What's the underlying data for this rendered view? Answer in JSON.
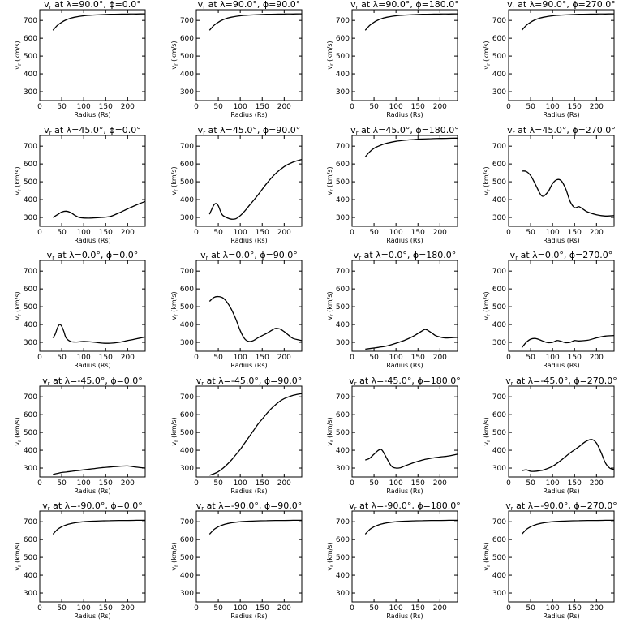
{
  "figure": {
    "title_prefix": "v",
    "title_sub": "r",
    "title_mid": " at λ=",
    "title_sep": ", ϕ=",
    "deg": "°"
  },
  "chart_data": [
    {
      "type": "line",
      "lambda": "90.0",
      "phi": "0.0",
      "xlabel": "Radius (Rs)",
      "ylabel": "v_r (km/s)",
      "xlim": [
        0,
        240
      ],
      "ylim": [
        250,
        760
      ],
      "xticks": [
        0,
        50,
        100,
        150,
        200
      ],
      "yticks": [
        300,
        400,
        500,
        600,
        700
      ],
      "x": [
        30,
        40,
        50,
        60,
        70,
        80,
        100,
        120,
        140,
        160,
        180,
        200,
        220,
        240
      ],
      "y": [
        645,
        672,
        690,
        703,
        712,
        718,
        726,
        730,
        732,
        734,
        735,
        736,
        736,
        737
      ]
    },
    {
      "type": "line",
      "lambda": "90.0",
      "phi": "90.0",
      "xlabel": "Radius (Rs)",
      "ylabel": "v_r (km/s)",
      "xlim": [
        0,
        240
      ],
      "ylim": [
        250,
        760
      ],
      "xticks": [
        0,
        50,
        100,
        150,
        200
      ],
      "yticks": [
        300,
        400,
        500,
        600,
        700
      ],
      "x": [
        30,
        40,
        50,
        60,
        70,
        80,
        100,
        120,
        140,
        160,
        180,
        200,
        220,
        240
      ],
      "y": [
        645,
        672,
        690,
        703,
        712,
        718,
        726,
        730,
        732,
        734,
        735,
        736,
        736,
        737
      ]
    },
    {
      "type": "line",
      "lambda": "90.0",
      "phi": "180.0",
      "xlabel": "Radius (Rs)",
      "ylabel": "v_r (km/s)",
      "xlim": [
        0,
        240
      ],
      "ylim": [
        250,
        760
      ],
      "xticks": [
        0,
        50,
        100,
        150,
        200
      ],
      "yticks": [
        300,
        400,
        500,
        600,
        700
      ],
      "x": [
        30,
        40,
        50,
        60,
        70,
        80,
        100,
        120,
        140,
        160,
        180,
        200,
        220,
        240
      ],
      "y": [
        645,
        672,
        690,
        703,
        712,
        718,
        726,
        730,
        732,
        734,
        735,
        736,
        736,
        737
      ]
    },
    {
      "type": "line",
      "lambda": "90.0",
      "phi": "270.0",
      "xlabel": "Radius (Rs)",
      "ylabel": "v_r (km/s)",
      "xlim": [
        0,
        240
      ],
      "ylim": [
        250,
        760
      ],
      "xticks": [
        0,
        50,
        100,
        150,
        200
      ],
      "yticks": [
        300,
        400,
        500,
        600,
        700
      ],
      "x": [
        30,
        40,
        50,
        60,
        70,
        80,
        100,
        120,
        140,
        160,
        180,
        200,
        220,
        240
      ],
      "y": [
        645,
        672,
        690,
        703,
        712,
        718,
        726,
        730,
        732,
        734,
        735,
        736,
        736,
        737
      ]
    },
    {
      "type": "line",
      "lambda": "45.0",
      "phi": "0.0",
      "xlabel": "Radius (Rs)",
      "ylabel": "v_r (km/s)",
      "xlim": [
        0,
        240
      ],
      "ylim": [
        250,
        760
      ],
      "xticks": [
        0,
        50,
        100,
        150,
        200
      ],
      "yticks": [
        300,
        400,
        500,
        600,
        700
      ],
      "x": [
        30,
        40,
        50,
        60,
        70,
        80,
        90,
        100,
        110,
        120,
        140,
        160,
        180,
        200,
        220,
        240
      ],
      "y": [
        300,
        315,
        330,
        335,
        328,
        312,
        300,
        297,
        296,
        297,
        300,
        305,
        325,
        348,
        370,
        390
      ]
    },
    {
      "type": "line",
      "lambda": "45.0",
      "phi": "90.0",
      "xlabel": "Radius (Rs)",
      "ylabel": "v_r (km/s)",
      "xlim": [
        0,
        240
      ],
      "ylim": [
        250,
        760
      ],
      "xticks": [
        0,
        50,
        100,
        150,
        200
      ],
      "yticks": [
        300,
        400,
        500,
        600,
        700
      ],
      "x": [
        30,
        35,
        40,
        45,
        50,
        55,
        60,
        70,
        80,
        90,
        100,
        110,
        120,
        140,
        160,
        180,
        200,
        220,
        240
      ],
      "y": [
        318,
        345,
        370,
        378,
        365,
        335,
        312,
        298,
        290,
        293,
        310,
        335,
        365,
        425,
        490,
        545,
        585,
        610,
        625
      ]
    },
    {
      "type": "line",
      "lambda": "45.0",
      "phi": "180.0",
      "xlabel": "Radius (Rs)",
      "ylabel": "v_r (km/s)",
      "xlim": [
        0,
        240
      ],
      "ylim": [
        250,
        760
      ],
      "xticks": [
        0,
        50,
        100,
        150,
        200
      ],
      "yticks": [
        300,
        400,
        500,
        600,
        700
      ],
      "x": [
        30,
        40,
        50,
        60,
        70,
        80,
        100,
        120,
        140,
        160,
        180,
        200,
        220,
        240
      ],
      "y": [
        640,
        668,
        688,
        700,
        710,
        717,
        727,
        733,
        737,
        740,
        742,
        743,
        744,
        745
      ]
    },
    {
      "type": "line",
      "lambda": "45.0",
      "phi": "270.0",
      "xlabel": "Radius (Rs)",
      "ylabel": "v_r (km/s)",
      "xlim": [
        0,
        240
      ],
      "ylim": [
        250,
        760
      ],
      "xticks": [
        0,
        50,
        100,
        150,
        200
      ],
      "yticks": [
        300,
        400,
        500,
        600,
        700
      ],
      "x": [
        30,
        40,
        50,
        60,
        70,
        75,
        80,
        90,
        100,
        110,
        120,
        130,
        140,
        150,
        160,
        170,
        180,
        200,
        220,
        240
      ],
      "y": [
        560,
        558,
        535,
        490,
        440,
        422,
        420,
        445,
        490,
        512,
        505,
        460,
        390,
        355,
        360,
        345,
        330,
        315,
        308,
        310
      ]
    },
    {
      "type": "line",
      "lambda": "0.0",
      "phi": "0.0",
      "xlabel": "Radius (Rs)",
      "ylabel": "v_r (km/s)",
      "xlim": [
        0,
        240
      ],
      "ylim": [
        250,
        760
      ],
      "xticks": [
        0,
        50,
        100,
        150,
        200
      ],
      "yticks": [
        300,
        400,
        500,
        600,
        700
      ],
      "x": [
        30,
        35,
        40,
        45,
        50,
        55,
        60,
        70,
        80,
        90,
        100,
        120,
        140,
        160,
        180,
        200,
        220,
        240
      ],
      "y": [
        325,
        345,
        380,
        400,
        390,
        360,
        325,
        305,
        302,
        303,
        305,
        302,
        296,
        295,
        300,
        310,
        320,
        330
      ]
    },
    {
      "type": "line",
      "lambda": "0.0",
      "phi": "90.0",
      "xlabel": "Radius (Rs)",
      "ylabel": "v_r (km/s)",
      "xlim": [
        0,
        240
      ],
      "ylim": [
        250,
        760
      ],
      "xticks": [
        0,
        50,
        100,
        150,
        200
      ],
      "yticks": [
        300,
        400,
        500,
        600,
        700
      ],
      "x": [
        30,
        40,
        50,
        60,
        70,
        80,
        90,
        100,
        110,
        120,
        130,
        140,
        150,
        160,
        170,
        180,
        190,
        200,
        210,
        220,
        240
      ],
      "y": [
        530,
        552,
        557,
        550,
        525,
        485,
        430,
        365,
        320,
        305,
        310,
        325,
        338,
        350,
        365,
        378,
        375,
        360,
        340,
        322,
        310
      ]
    },
    {
      "type": "line",
      "lambda": "0.0",
      "phi": "180.0",
      "xlabel": "Radius (Rs)",
      "ylabel": "v_r (km/s)",
      "xlim": [
        0,
        240
      ],
      "ylim": [
        250,
        760
      ],
      "xticks": [
        0,
        50,
        100,
        150,
        200
      ],
      "yticks": [
        300,
        400,
        500,
        600,
        700
      ],
      "x": [
        30,
        40,
        60,
        80,
        100,
        120,
        140,
        150,
        160,
        165,
        170,
        180,
        190,
        200,
        210,
        220,
        240
      ],
      "y": [
        262,
        265,
        272,
        280,
        295,
        312,
        335,
        350,
        365,
        372,
        370,
        355,
        338,
        330,
        325,
        325,
        328
      ]
    },
    {
      "type": "line",
      "lambda": "0.0",
      "phi": "270.0",
      "xlabel": "Radius (Rs)",
      "ylabel": "v_r (km/s)",
      "xlim": [
        0,
        240
      ],
      "ylim": [
        250,
        760
      ],
      "xticks": [
        0,
        50,
        100,
        150,
        200
      ],
      "yticks": [
        300,
        400,
        500,
        600,
        700
      ],
      "x": [
        30,
        40,
        50,
        60,
        70,
        80,
        90,
        100,
        110,
        120,
        130,
        140,
        150,
        160,
        180,
        200,
        220,
        240
      ],
      "y": [
        270,
        300,
        318,
        322,
        315,
        305,
        298,
        300,
        310,
        305,
        298,
        300,
        310,
        308,
        312,
        325,
        335,
        338
      ]
    },
    {
      "type": "line",
      "lambda": "-45.0",
      "phi": "0.0",
      "xlabel": "Radius (Rs)",
      "ylabel": "v_r (km/s)",
      "xlim": [
        0,
        240
      ],
      "ylim": [
        250,
        760
      ],
      "xticks": [
        0,
        50,
        100,
        150,
        200
      ],
      "yticks": [
        300,
        400,
        500,
        600,
        700
      ],
      "x": [
        30,
        40,
        50,
        60,
        80,
        100,
        120,
        140,
        160,
        180,
        200,
        220,
        240
      ],
      "y": [
        265,
        270,
        275,
        278,
        284,
        290,
        296,
        302,
        306,
        310,
        312,
        305,
        300
      ]
    },
    {
      "type": "line",
      "lambda": "-45.0",
      "phi": "90.0",
      "xlabel": "Radius (Rs)",
      "ylabel": "v_r (km/s)",
      "xlim": [
        0,
        240
      ],
      "ylim": [
        250,
        760
      ],
      "xticks": [
        0,
        50,
        100,
        150,
        200
      ],
      "yticks": [
        300,
        400,
        500,
        600,
        700
      ],
      "x": [
        30,
        40,
        50,
        60,
        70,
        80,
        90,
        100,
        110,
        120,
        130,
        140,
        150,
        160,
        170,
        180,
        190,
        200,
        210,
        220,
        230,
        240
      ],
      "y": [
        260,
        268,
        280,
        298,
        320,
        345,
        375,
        405,
        440,
        475,
        510,
        545,
        575,
        605,
        632,
        655,
        675,
        690,
        700,
        708,
        714,
        718
      ]
    },
    {
      "type": "line",
      "lambda": "-45.0",
      "phi": "180.0",
      "xlabel": "Radius (Rs)",
      "ylabel": "v_r (km/s)",
      "xlim": [
        0,
        240
      ],
      "ylim": [
        250,
        760
      ],
      "xticks": [
        0,
        50,
        100,
        150,
        200
      ],
      "yticks": [
        300,
        400,
        500,
        600,
        700
      ],
      "x": [
        30,
        40,
        50,
        60,
        65,
        70,
        80,
        90,
        100,
        110,
        120,
        140,
        160,
        180,
        200,
        220,
        240
      ],
      "y": [
        345,
        355,
        378,
        400,
        405,
        395,
        350,
        310,
        300,
        302,
        312,
        330,
        345,
        355,
        362,
        368,
        378
      ]
    },
    {
      "type": "line",
      "lambda": "-45.0",
      "phi": "270.0",
      "xlabel": "Radius (Rs)",
      "ylabel": "v_r (km/s)",
      "xlim": [
        0,
        240
      ],
      "ylim": [
        250,
        760
      ],
      "xticks": [
        0,
        50,
        100,
        150,
        200
      ],
      "yticks": [
        300,
        400,
        500,
        600,
        700
      ],
      "x": [
        30,
        40,
        50,
        60,
        70,
        80,
        100,
        120,
        140,
        160,
        170,
        180,
        190,
        200,
        210,
        220,
        230,
        240
      ],
      "y": [
        285,
        290,
        282,
        282,
        285,
        290,
        310,
        345,
        385,
        420,
        440,
        455,
        460,
        440,
        390,
        330,
        300,
        292
      ]
    },
    {
      "type": "line",
      "lambda": "-90.0",
      "phi": "0.0",
      "xlabel": "Radius (Rs)",
      "ylabel": "v_r (km/s)",
      "xlim": [
        0,
        240
      ],
      "ylim": [
        250,
        760
      ],
      "xticks": [
        0,
        50,
        100,
        150,
        200
      ],
      "yticks": [
        300,
        400,
        500,
        600,
        700
      ],
      "x": [
        30,
        40,
        50,
        60,
        70,
        80,
        100,
        120,
        140,
        160,
        180,
        200,
        220,
        240
      ],
      "y": [
        630,
        656,
        672,
        682,
        689,
        694,
        700,
        703,
        705,
        706,
        707,
        707,
        708,
        708
      ]
    },
    {
      "type": "line",
      "lambda": "-90.0",
      "phi": "90.0",
      "xlabel": "Radius (Rs)",
      "ylabel": "v_r (km/s)",
      "xlim": [
        0,
        240
      ],
      "ylim": [
        250,
        760
      ],
      "xticks": [
        0,
        50,
        100,
        150,
        200
      ],
      "yticks": [
        300,
        400,
        500,
        600,
        700
      ],
      "x": [
        30,
        40,
        50,
        60,
        70,
        80,
        100,
        120,
        140,
        160,
        180,
        200,
        220,
        240
      ],
      "y": [
        630,
        656,
        672,
        682,
        689,
        694,
        700,
        703,
        705,
        706,
        707,
        707,
        708,
        708
      ]
    },
    {
      "type": "line",
      "lambda": "-90.0",
      "phi": "180.0",
      "xlabel": "Radius (Rs)",
      "ylabel": "v_r (km/s)",
      "xlim": [
        0,
        240
      ],
      "ylim": [
        250,
        760
      ],
      "xticks": [
        0,
        50,
        100,
        150,
        200
      ],
      "yticks": [
        300,
        400,
        500,
        600,
        700
      ],
      "x": [
        30,
        40,
        50,
        60,
        70,
        80,
        100,
        120,
        140,
        160,
        180,
        200,
        220,
        240
      ],
      "y": [
        630,
        656,
        672,
        682,
        689,
        694,
        700,
        703,
        705,
        706,
        707,
        707,
        708,
        708
      ]
    },
    {
      "type": "line",
      "lambda": "-90.0",
      "phi": "270.0",
      "xlabel": "Radius (Rs)",
      "ylabel": "v_r (km/s)",
      "xlim": [
        0,
        240
      ],
      "ylim": [
        250,
        760
      ],
      "xticks": [
        0,
        50,
        100,
        150,
        200
      ],
      "yticks": [
        300,
        400,
        500,
        600,
        700
      ],
      "x": [
        30,
        40,
        50,
        60,
        70,
        80,
        100,
        120,
        140,
        160,
        180,
        200,
        220,
        240
      ],
      "y": [
        630,
        656,
        672,
        682,
        689,
        694,
        700,
        703,
        705,
        706,
        707,
        707,
        708,
        708
      ]
    }
  ]
}
